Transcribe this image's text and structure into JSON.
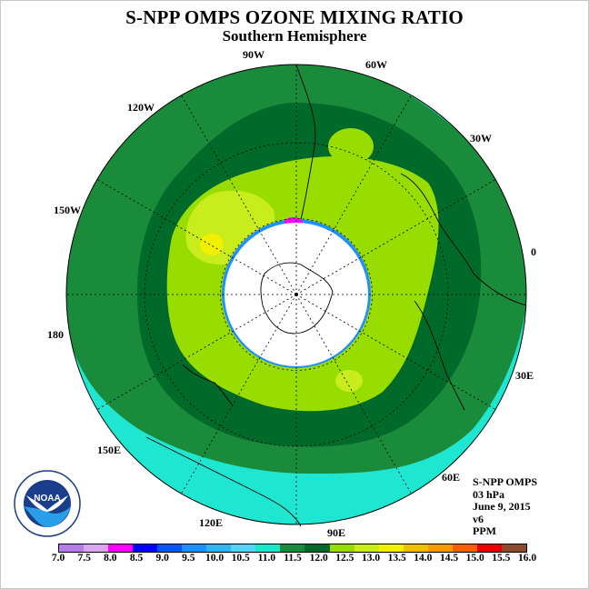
{
  "title": "S-NPP OMPS OZONE MIXING RATIO",
  "subtitle": "Southern Hemisphere",
  "longitude_labels": [
    "90W",
    "60W",
    "30W",
    "0",
    "30E",
    "60E",
    "90E",
    "120E",
    "150E",
    "180",
    "150W",
    "120W"
  ],
  "info": {
    "product": "S-NPP OMPS",
    "level": "03 hPa",
    "date": "June 9, 2015",
    "version": "v6",
    "units": "PPM"
  },
  "colorbar": {
    "ticks": [
      "7.0",
      "7.5",
      "8.0",
      "8.5",
      "9.0",
      "9.5",
      "10.0",
      "10.5",
      "11.0",
      "11.5",
      "12.0",
      "12.5",
      "13.0",
      "13.5",
      "14.0",
      "14.5",
      "15.0",
      "15.5",
      "16.0"
    ],
    "colors": [
      "#b57ce8",
      "#d9a6f0",
      "#ff00ff",
      "#0000ff",
      "#0055ee",
      "#1e90ff",
      "#33b5f2",
      "#56d3f5",
      "#1ee6c8",
      "#1a8b3a",
      "#006a2a",
      "#99dd00",
      "#c8ec1c",
      "#f0f000",
      "#f0c000",
      "#f59a00",
      "#f26000",
      "#e60000",
      "#8b4a2b"
    ]
  },
  "logo_text": "NOAA",
  "logo_ring_text": "NATIONAL OCEANIC AND ATMOSPHERIC ADMINISTRATION · U.S. DEPARTMENT OF COMMERCE",
  "map_colors": {
    "outer": "#1ee6d0",
    "ring_11_5": "#1a8b3a",
    "ring_12": "#006a2a",
    "ring_12_5": "#99dd00",
    "ring_13": "#c8ec1c",
    "ring_13_5": "#f0f000",
    "pole_blue": "#1e90ff",
    "pole_magenta": "#ff00ff"
  }
}
